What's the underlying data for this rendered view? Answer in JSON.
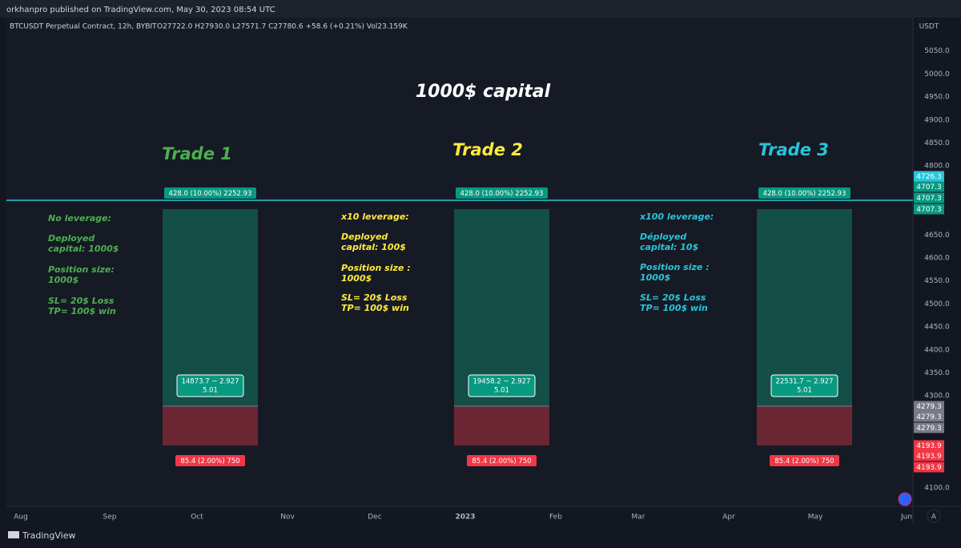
{
  "header": {
    "title": "orkhanpro published on TradingView.com, May 30, 2023 08:54 UTC"
  },
  "symbol_bar": {
    "symbol": "BTCUSDT Perpetual Contract, 12h, BYBIT",
    "ohlc": "O27722.0 H27930.0 L27571.7 C27780.6 +58.6 (+0.21%) Vol23.159K"
  },
  "annotations": {
    "title": "1000$ capital",
    "trades": [
      {
        "title": "Trade 1",
        "color": "#4caf50",
        "notes": [
          "No leverage:",
          "Deployed",
          "capital: 1000$",
          "Position size:",
          "1000$",
          "SL= 20$ Loss",
          "TP= 100$ win"
        ],
        "top_label": "428.0 (10.00%) 2252.93",
        "middle_label": [
          "14873.7 ~ 2.927",
          "5.01"
        ],
        "bottom_label": "85.4 (2.00%) 750"
      },
      {
        "title": "Trade 2",
        "color": "#ffeb3b",
        "notes": [
          "x10 leverage:",
          "Deployed",
          "capital: 100$",
          "Position size :",
          "1000$",
          "SL= 20$ Loss",
          "TP= 100$ win"
        ],
        "top_label": "428.0 (10.00%) 2252.93",
        "middle_label": [
          "19458.2 ~ 2.927",
          "5.01"
        ],
        "bottom_label": "85.4 (2.00%) 750"
      },
      {
        "title": "Trade 3",
        "color": "#26c6da",
        "notes": [
          "x100 leverage:",
          "Déployed",
          "capital: 10$",
          "Position size :",
          "1000$",
          "SL= 20$ Loss",
          "TP= 100$ win"
        ],
        "top_label": "428.0 (10.00%) 2252.93",
        "middle_label": [
          "22531.7 ~ 2.927",
          "5.01"
        ],
        "bottom_label": "85.4 (2.00%) 750"
      }
    ]
  },
  "price_axis": {
    "unit": "USDT",
    "labels": [
      "5050.0",
      "5000.0",
      "4950.0",
      "4900.0",
      "4850.0",
      "4800.0",
      "4650.0",
      "4600.0",
      "4550.0",
      "4500.0",
      "4450.0",
      "4400.0",
      "4350.0",
      "4300.0",
      "4100.0"
    ],
    "tags": [
      {
        "color": "#26c6da",
        "labels": [
          "4726.3"
        ]
      },
      {
        "color": "#089981",
        "labels": [
          "4707.3",
          "4707.3",
          "4707.3"
        ]
      },
      {
        "color": "#787b86",
        "labels": [
          "4279.3",
          "4279.3",
          "4279.3"
        ]
      },
      {
        "color": "#f23645",
        "labels": [
          "4193.9",
          "4193.9",
          "4193.9"
        ]
      }
    ]
  },
  "time_axis": [
    "Aug",
    "Sep",
    "Oct",
    "Nov",
    "Dec",
    "2023",
    "Feb",
    "Mar",
    "Apr",
    "May",
    "Jun"
  ],
  "footer": {
    "brand": "TradingView",
    "auto": "A"
  }
}
